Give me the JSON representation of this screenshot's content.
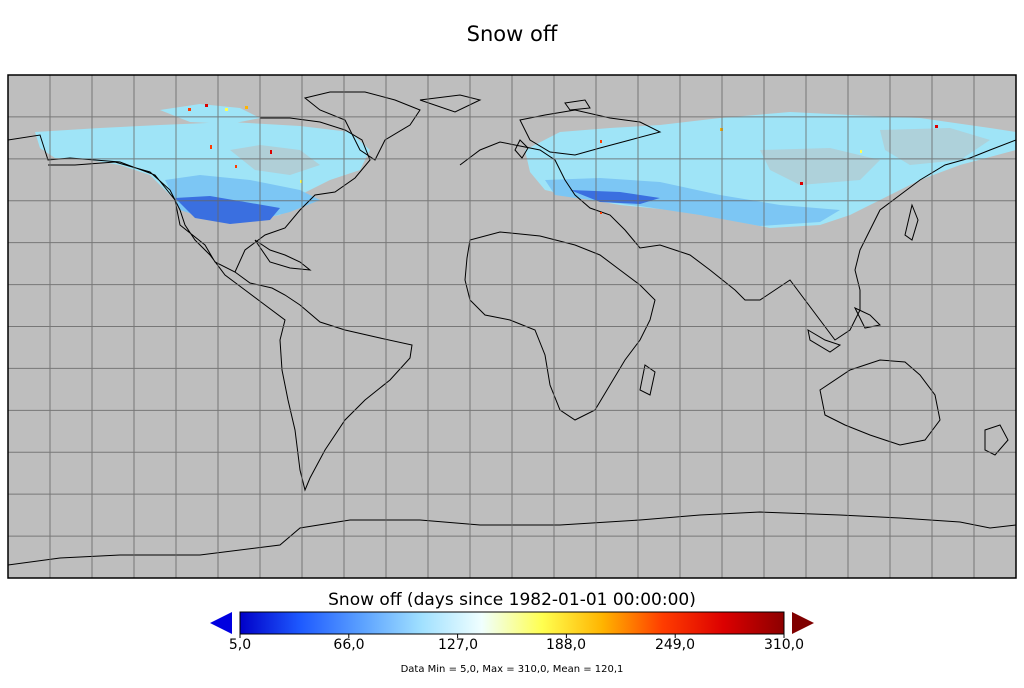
{
  "title": "Snow off",
  "colorbar": {
    "label": "Snow off (days since 1982-01-01 00:00:00)",
    "ticks": [
      "5,0",
      "66,0",
      "127,0",
      "188,0",
      "249,0",
      "310,0"
    ],
    "min": 5.0,
    "max": 310.0,
    "colors": [
      "#0000c8",
      "#1e5aff",
      "#5aa0ff",
      "#a0e0ff",
      "#f0ffff",
      "#ffff50",
      "#ffb400",
      "#ff3c00",
      "#dc0000",
      "#8c0000"
    ],
    "under_color": "#0000e0",
    "over_color": "#800000"
  },
  "stats": "Data Min = 5,0, Max = 310,0, Mean = 120,1",
  "map": {
    "projection": "equirectangular",
    "background_color": "#bebebe",
    "grid": true,
    "coastline_color": "#000000",
    "snow_colors": [
      "#9fe4f7",
      "#7cc6f4",
      "#3a6fe0"
    ]
  }
}
